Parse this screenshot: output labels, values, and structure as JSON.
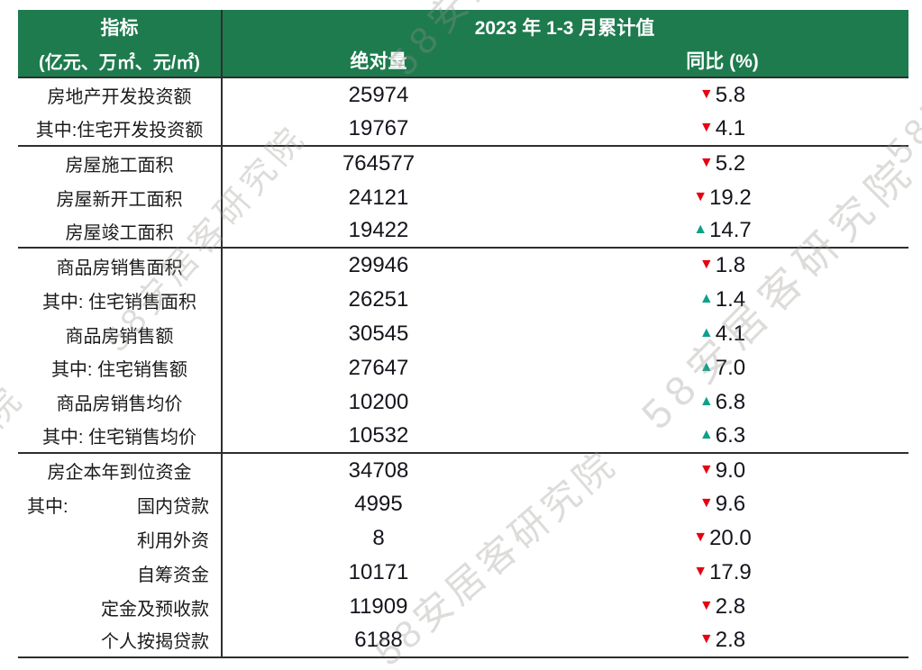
{
  "page": {
    "background": "#ffffff"
  },
  "watermark": {
    "text": "58安居客研究院"
  },
  "colors": {
    "header_green": "#1e7b4e",
    "down_red": "#e60012",
    "up_teal": "#0ea189",
    "label_text": "#1a1a1a",
    "number_text": "#14141c",
    "line": "#2e2e2e"
  },
  "icons": {
    "down_triangle": "▼",
    "up_triangle": "▲"
  },
  "header": {
    "indicator_title": "指标",
    "indicator_units": "(亿元、万㎡、元/㎡)",
    "period_title": "2023 年 1-3 月累计值",
    "absolute_label": "绝对量",
    "yoy_label": "同比 (%)"
  },
  "chart_data": {
    "type": "table",
    "title": "2023 年 1-3 月累计值",
    "columns": [
      "指标 (亿元、万㎡、元/㎡)",
      "绝对量",
      "同比 (%)"
    ],
    "rows": [
      {
        "label": "房地产开发投资额",
        "absolute": "25974",
        "yoy": "5.8",
        "direction": "down",
        "align": "center",
        "section_end": false
      },
      {
        "label": "其中:住宅开发投资额",
        "absolute": "19767",
        "yoy": "4.1",
        "direction": "down",
        "align": "center",
        "section_end": true
      },
      {
        "label": "房屋施工面积",
        "absolute": "764577",
        "yoy": "5.2",
        "direction": "down",
        "align": "center",
        "section_end": false
      },
      {
        "label": "房屋新开工面积",
        "absolute": "24121",
        "yoy": "19.2",
        "direction": "down",
        "align": "center",
        "section_end": false
      },
      {
        "label": "房屋竣工面积",
        "absolute": "19422",
        "yoy": "14.7",
        "direction": "up",
        "align": "center",
        "section_end": true
      },
      {
        "label": "商品房销售面积",
        "absolute": "29946",
        "yoy": "1.8",
        "direction": "down",
        "align": "center",
        "section_end": false
      },
      {
        "label": "其中: 住宅销售面积",
        "absolute": "26251",
        "yoy": "1.4",
        "direction": "up",
        "align": "center",
        "section_end": false
      },
      {
        "label": "商品房销售额",
        "absolute": "30545",
        "yoy": "4.1",
        "direction": "up",
        "align": "center",
        "section_end": false
      },
      {
        "label": "其中: 住宅销售额",
        "absolute": "27647",
        "yoy": "7.0",
        "direction": "up",
        "align": "center",
        "section_end": false
      },
      {
        "label": "商品房销售均价",
        "absolute": "10200",
        "yoy": "6.8",
        "direction": "up",
        "align": "center",
        "section_end": false
      },
      {
        "label": "其中: 住宅销售均价",
        "absolute": "10532",
        "yoy": "6.3",
        "direction": "up",
        "align": "center",
        "section_end": true
      },
      {
        "label": "房企本年到位资金",
        "absolute": "34708",
        "yoy": "9.0",
        "direction": "down",
        "align": "center",
        "section_end": false
      },
      {
        "prefix": "其中:",
        "label": "国内贷款",
        "absolute": "4995",
        "yoy": "9.6",
        "direction": "down",
        "align": "split",
        "section_end": false
      },
      {
        "label": "利用外资",
        "absolute": "8",
        "yoy": "20.0",
        "direction": "down",
        "align": "right",
        "section_end": false
      },
      {
        "label": "自筹资金",
        "absolute": "10171",
        "yoy": "17.9",
        "direction": "down",
        "align": "right",
        "section_end": false
      },
      {
        "label": "定金及预收款",
        "absolute": "11909",
        "yoy": "2.8",
        "direction": "down",
        "align": "right",
        "section_end": false
      },
      {
        "label": "个人按揭贷款",
        "absolute": "6188",
        "yoy": "2.8",
        "direction": "down",
        "align": "right",
        "section_end": true
      }
    ]
  }
}
